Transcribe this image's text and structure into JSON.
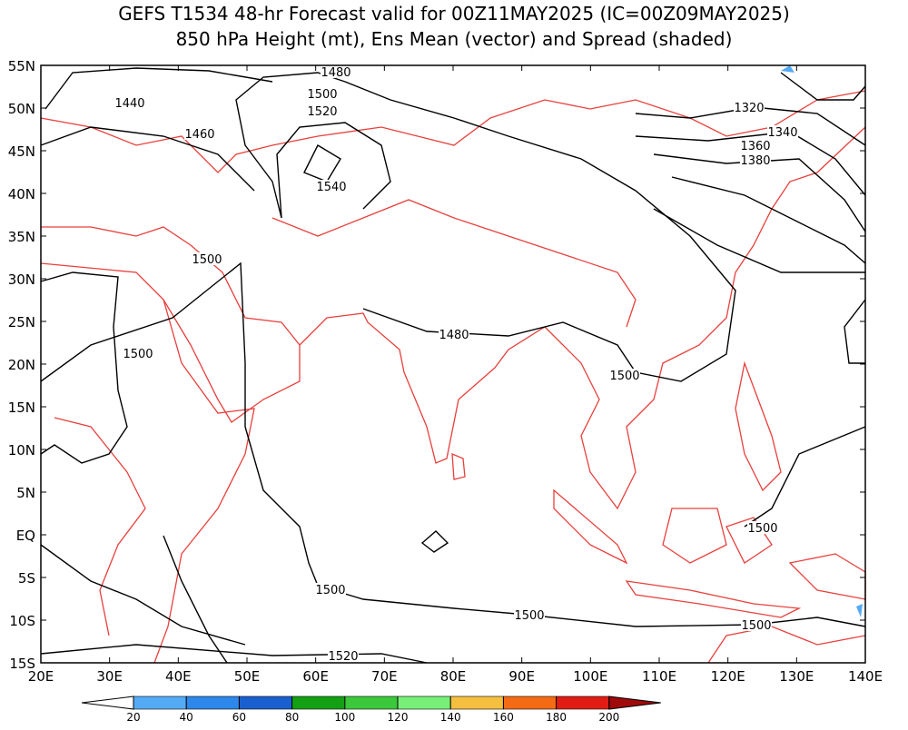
{
  "title": {
    "line1": "GEFS T1534 48-hr Forecast valid for 00Z11MAY2025 (IC=00Z09MAY2025)",
    "line2": "850 hPa Height (mt), Ens Mean (vector) and Spread (shaded)"
  },
  "map": {
    "lon_labels": [
      "20E",
      "30E",
      "40E",
      "50E",
      "60E",
      "70E",
      "80E",
      "90E",
      "100E",
      "110E",
      "120E",
      "130E",
      "140E"
    ],
    "lat_labels": [
      "55N",
      "50N",
      "45N",
      "40N",
      "35N",
      "30N",
      "25N",
      "20N",
      "15N",
      "10N",
      "5N",
      "EQ",
      "5S",
      "10S",
      "15S"
    ],
    "contour_labels": [
      1480,
      1440,
      1460,
      1500,
      1520,
      1540,
      1500,
      1500,
      1480,
      1500,
      1320,
      1340,
      1360,
      1380,
      1500,
      1500,
      1500,
      1500,
      1520
    ]
  },
  "colorbar": {
    "ticks": [
      20,
      40,
      60,
      80,
      100,
      120,
      140,
      160,
      180,
      200
    ],
    "colors": [
      "#ffffff",
      "#55aaf5",
      "#2e87eb",
      "#1a5fcf",
      "#14a014",
      "#3cc83c",
      "#78f078",
      "#f5c040",
      "#f56a14",
      "#e01c14",
      "#a00a0a"
    ]
  }
}
